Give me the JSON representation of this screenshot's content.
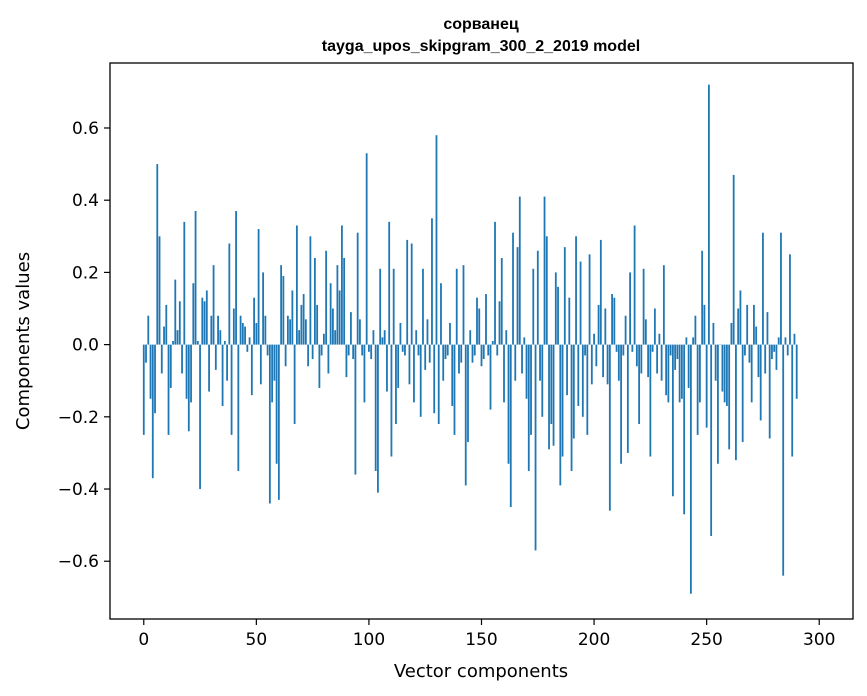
{
  "chart_data": {
    "type": "bar",
    "title": "сорванец",
    "subtitle": "tayga_upos_skipgram_300_2_2019 model",
    "xlabel": "Vector components",
    "ylabel": "Components values",
    "xlim": [
      -15,
      315
    ],
    "ylim": [
      -0.76,
      0.78
    ],
    "xticks": [
      0,
      50,
      100,
      150,
      200,
      250,
      300
    ],
    "yticks": [
      -0.6,
      -0.4,
      -0.2,
      0.0,
      0.2,
      0.4,
      0.6
    ],
    "ytick_labels": [
      "−0.6",
      "−0.4",
      "−0.2",
      "0.0",
      "0.2",
      "0.4",
      "0.6"
    ],
    "grid": false,
    "bar_color": "#1f77b4",
    "x_start": 0,
    "values": [
      -0.25,
      -0.05,
      0.08,
      -0.15,
      -0.37,
      -0.19,
      0.5,
      0.3,
      -0.08,
      0.05,
      0.11,
      -0.25,
      -0.12,
      0.01,
      0.18,
      0.04,
      0.12,
      -0.08,
      0.34,
      -0.15,
      -0.24,
      -0.16,
      0.17,
      0.37,
      0.01,
      -0.4,
      0.13,
      0.12,
      0.15,
      -0.13,
      0.08,
      0.22,
      -0.07,
      0.08,
      0.04,
      -0.17,
      0.01,
      -0.1,
      0.28,
      -0.25,
      0.1,
      0.37,
      -0.35,
      0.08,
      0.06,
      0.05,
      -0.02,
      0.02,
      -0.14,
      0.13,
      0.06,
      0.32,
      -0.11,
      0.2,
      0.08,
      -0.03,
      -0.44,
      -0.16,
      -0.1,
      -0.33,
      -0.43,
      0.22,
      0.19,
      -0.06,
      0.08,
      0.07,
      0.15,
      -0.22,
      0.33,
      0.04,
      0.11,
      0.14,
      0.07,
      -0.06,
      0.3,
      -0.04,
      0.24,
      0.11,
      -0.12,
      -0.03,
      0.03,
      0.26,
      -0.08,
      0.17,
      0.1,
      0.04,
      0.22,
      0.15,
      0.33,
      0.24,
      -0.09,
      -0.03,
      0.09,
      -0.04,
      -0.36,
      0.31,
      0.07,
      -0.03,
      -0.16,
      0.53,
      -0.02,
      -0.04,
      0.04,
      -0.35,
      -0.41,
      0.21,
      0.02,
      0.04,
      -0.13,
      0.34,
      -0.31,
      0.21,
      -0.22,
      -0.12,
      0.06,
      -0.02,
      -0.03,
      0.29,
      -0.11,
      0.28,
      -0.16,
      0.04,
      -0.03,
      -0.2,
      0.21,
      -0.07,
      0.07,
      -0.05,
      0.35,
      -0.19,
      0.58,
      -0.22,
      0.17,
      -0.1,
      -0.04,
      -0.03,
      0.06,
      -0.17,
      -0.25,
      0.21,
      -0.08,
      -0.05,
      0.22,
      -0.39,
      -0.27,
      0.04,
      -0.05,
      -0.03,
      0.13,
      0.1,
      -0.06,
      -0.04,
      0.14,
      -0.03,
      -0.18,
      0.01,
      0.34,
      -0.03,
      0.12,
      0.24,
      -0.16,
      0.04,
      -0.33,
      -0.45,
      0.31,
      -0.1,
      0.27,
      0.41,
      -0.08,
      0.02,
      -0.15,
      -0.35,
      -0.25,
      0.21,
      -0.57,
      0.26,
      -0.1,
      -0.2,
      0.41,
      0.3,
      -0.29,
      -0.22,
      -0.28,
      0.2,
      0.16,
      -0.39,
      -0.31,
      0.27,
      -0.14,
      0.13,
      -0.35,
      -0.26,
      0.3,
      -0.17,
      0.23,
      -0.2,
      -0.03,
      -0.25,
      0.25,
      -0.11,
      0.03,
      -0.06,
      0.11,
      0.29,
      -0.09,
      0.1,
      -0.11,
      -0.46,
      0.14,
      0.13,
      -0.02,
      -0.1,
      -0.33,
      -0.03,
      0.08,
      -0.3,
      0.2,
      -0.02,
      0.33,
      -0.06,
      -0.22,
      -0.08,
      0.21,
      0.07,
      -0.09,
      -0.31,
      -0.02,
      0.1,
      -0.08,
      0.03,
      -0.1,
      0.22,
      -0.14,
      -0.16,
      -0.03,
      -0.42,
      -0.07,
      -0.04,
      -0.16,
      -0.15,
      -0.47,
      0.02,
      -0.12,
      -0.69,
      0.02,
      0.08,
      -0.25,
      -0.16,
      0.26,
      0.11,
      -0.23,
      0.72,
      -0.53,
      0.06,
      -0.1,
      -0.33,
      0.0,
      -0.13,
      -0.16,
      -0.17,
      -0.29,
      0.06,
      0.47,
      -0.32,
      0.1,
      0.15,
      -0.27,
      -0.03,
      0.11,
      -0.05,
      -0.16,
      0.11,
      0.05,
      -0.09,
      -0.21,
      0.31,
      -0.08,
      0.09,
      -0.26,
      -0.04,
      -0.02,
      -0.07,
      0.02,
      0.31,
      -0.64,
      0.02,
      -0.03,
      0.25,
      -0.31,
      0.03,
      -0.15
    ]
  }
}
